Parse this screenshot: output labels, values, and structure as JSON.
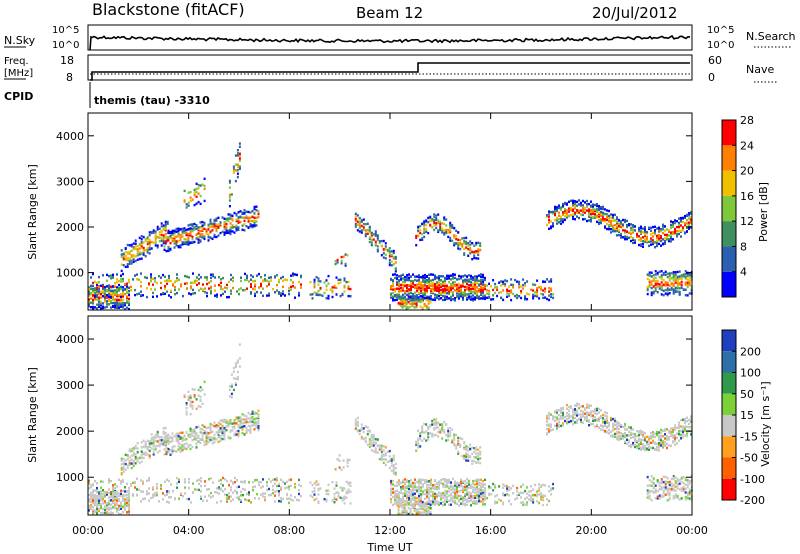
{
  "header": {
    "station": "Blackstone (fitACF)",
    "beam": "Beam 12",
    "date": "20/Jul/2012"
  },
  "cpid": {
    "label": "CPID",
    "value": "themis (tau) -3310"
  },
  "noise_panel": {
    "left_label": "N.Sky",
    "right_label": "N.Search",
    "left_ticks": [
      "10^5",
      "10^0"
    ],
    "right_ticks": [
      "10^5",
      "10^0"
    ]
  },
  "freq_panel": {
    "left_label_1": "Freq.",
    "left_label_2": "[MHz]",
    "right_label": "Nave",
    "left_ticks": [
      "18",
      "8"
    ],
    "right_ticks": [
      "60",
      "0"
    ]
  },
  "chart_data": [
    {
      "type": "heatmap",
      "parameter": "Power",
      "ylabel": "Slant Range [km]",
      "ylim": [
        180,
        4500
      ],
      "yticks": [
        "1000",
        "2000",
        "3000",
        "4000"
      ],
      "colorbar": {
        "label": "Power [dB]",
        "ticks": [
          "4",
          "8",
          "12",
          "16",
          "20",
          "24",
          "28"
        ],
        "colors": [
          "#0000ff",
          "#2b5fb0",
          "#3f8f5f",
          "#7ec83a",
          "#f0c000",
          "#ff8000",
          "#ff0000"
        ]
      }
    },
    {
      "type": "heatmap",
      "parameter": "Velocity",
      "ylabel": "Slant Range [km]",
      "ylim": [
        180,
        4500
      ],
      "yticks": [
        "1000",
        "2000",
        "3000",
        "4000"
      ],
      "colorbar": {
        "label": "Velocity [m s⁻¹]",
        "ticks": [
          "200",
          "100",
          "50",
          "15",
          "-15",
          "-50",
          "-100",
          "-200"
        ],
        "colors": [
          "#1f3fbf",
          "#2e6fa8",
          "#2e9a4a",
          "#7cd13a",
          "#c8c8c8",
          "#ffa020",
          "#ff6000",
          "#ff0000"
        ]
      }
    }
  ],
  "xaxis": {
    "label": "Time UT",
    "ticks": [
      "00:00",
      "04:00",
      "08:00",
      "12:00",
      "16:00",
      "20:00",
      "00:00"
    ]
  }
}
